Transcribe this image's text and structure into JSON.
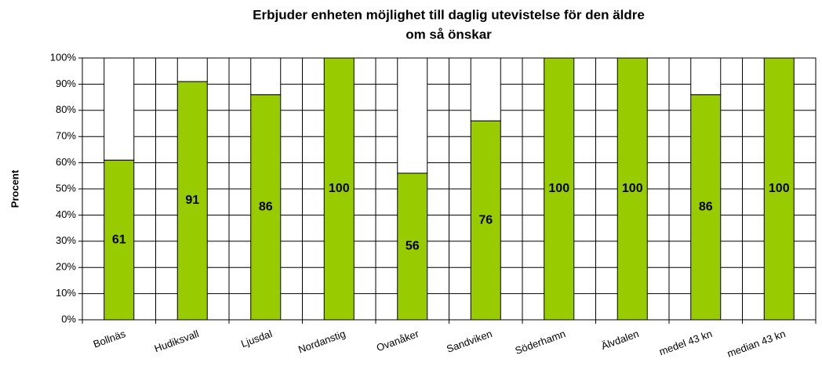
{
  "chart_data": {
    "type": "stacked_bar",
    "title": [
      "Erbjuder enheten möjlighet till daglig utevistelse för den äldre",
      "om så önskar"
    ],
    "y_label": "Procent",
    "categories": [
      "Bollnäs",
      "Hudiksvall",
      "Ljusdal",
      "Nordanstig",
      "Ovanåker",
      "Sandviken",
      "Söderhamn",
      "Älvdalen",
      "medel 43 kn",
      "median 43 kn"
    ],
    "series": [
      {
        "color": "#99cc00",
        "values": [
          61,
          91,
          86,
          100,
          56,
          76,
          100,
          100,
          86,
          100
        ],
        "show_labels": true
      },
      {
        "color": "#ffffff",
        "values": [
          39,
          9,
          14,
          0,
          44,
          24,
          0,
          0,
          14,
          0
        ],
        "show_labels": false
      }
    ],
    "ylim": [
      0,
      100
    ],
    "yticks": [
      {
        "value": 0,
        "label": "0%"
      },
      {
        "value": 10,
        "label": "10%"
      },
      {
        "value": 20,
        "label": "20%"
      },
      {
        "value": 30,
        "label": "30%"
      },
      {
        "value": 40,
        "label": "40%"
      },
      {
        "value": 50,
        "label": "50%"
      },
      {
        "value": 60,
        "label": "60%"
      },
      {
        "value": 70,
        "label": "70%"
      },
      {
        "value": 80,
        "label": "80%"
      },
      {
        "value": 90,
        "label": "90%"
      },
      {
        "value": 100,
        "label": "100%"
      }
    ],
    "grid": true
  }
}
